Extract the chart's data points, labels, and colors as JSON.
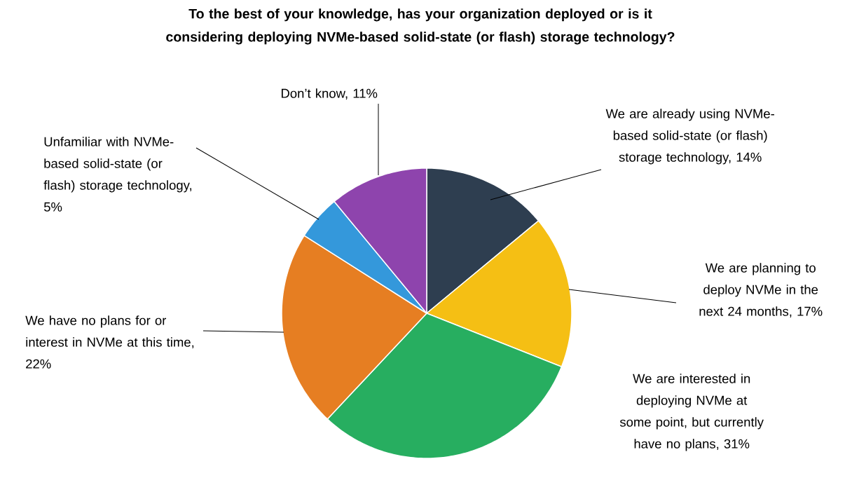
{
  "chart_data": {
    "type": "pie",
    "title": "To the best of your knowledge, has your organization deployed or is it considering deploying NVMe-based solid-state (or flash) storage technology?",
    "categories": [
      "We are already using NVMe-based solid-state (or flash) storage technology, 14%",
      "We are planning to deploy NVMe in the next 24 months, 17%",
      "We are interested in deploying NVMe at some point, but currently have no plans, 31%",
      "We have no plans for or interest in NVMe at this time, 22%",
      "Unfamiliar with NVMe-based solid-state (or flash) storage technology, 5%",
      "Don’t know, 11%"
    ],
    "values": [
      14,
      17,
      31,
      22,
      5,
      11
    ],
    "colors": [
      "#2e3e50",
      "#f5bf14",
      "#27ae60",
      "#e67e22",
      "#3498db",
      "#8e44ad"
    ]
  }
}
